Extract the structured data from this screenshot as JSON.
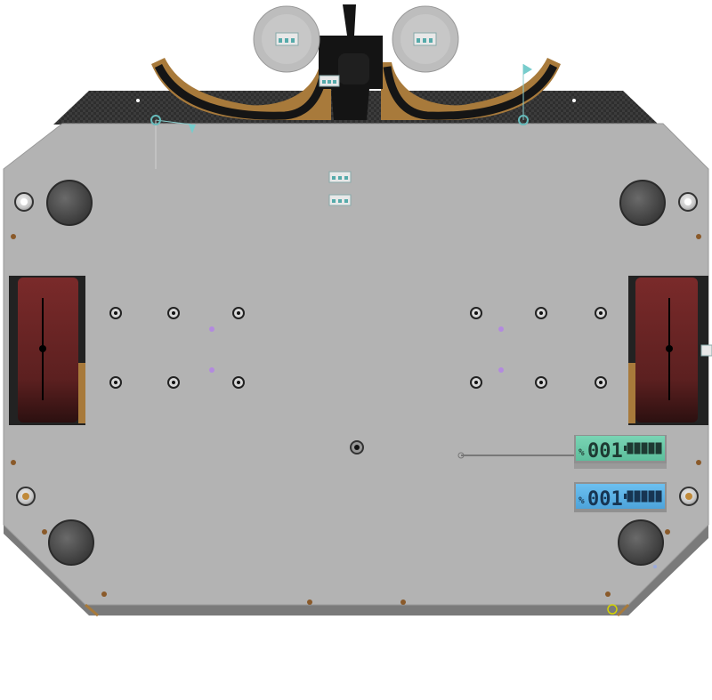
{
  "viewport": {
    "view": "top",
    "background": "#ffffff"
  },
  "colors": {
    "base_plate": "#b3b3b3",
    "plate_edge": "#8a8a8a",
    "carbon_plate": "#333333",
    "wheel_bracket": "#a87a3b",
    "motor": "#6b2626",
    "lcd_green_bg": "#66c9a6",
    "lcd_blue_bg": "#59b0e6",
    "selection_marker": "#d4d400"
  },
  "displays": {
    "lcd_green": {
      "digits": "001",
      "prefix": "%",
      "battery_level": 1.0
    },
    "lcd_blue": {
      "digits": "001",
      "prefix": "%",
      "battery_level": 1.0
    }
  },
  "icons": [
    "flag-marker-icon",
    "pivot-point-icon",
    "mounting-hole-icon",
    "standoff-icon",
    "connector-icon"
  ]
}
